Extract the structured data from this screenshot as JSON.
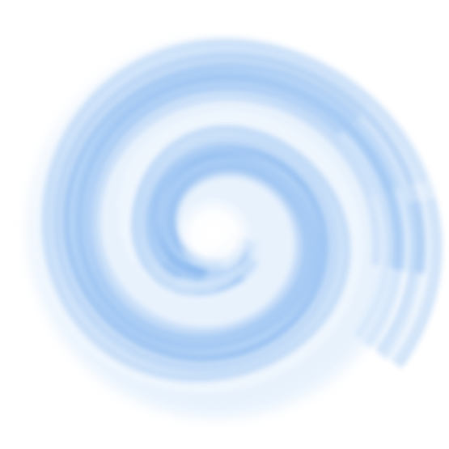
{
  "image": {
    "subject": "blue-swirl",
    "colors": {
      "background": "#ffffff",
      "light": "#d6e8fc",
      "mid": "#a9cdf5",
      "deep": "#7fb3ee",
      "accent": "#5c9ae6"
    }
  }
}
